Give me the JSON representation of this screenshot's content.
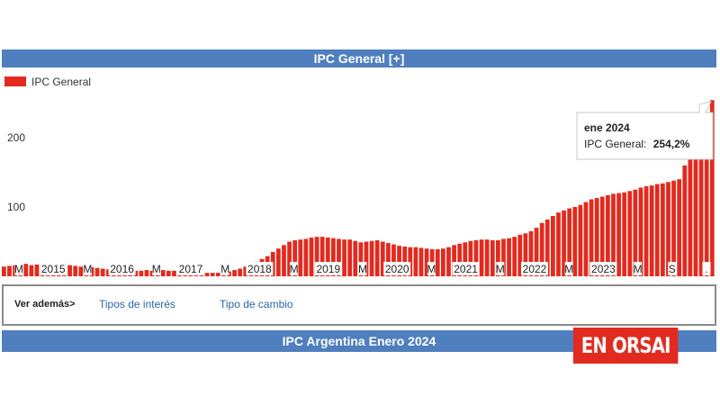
{
  "header": {
    "title": "IPC General [+]"
  },
  "chart_data": {
    "type": "bar",
    "series": [
      {
        "name": "IPC General",
        "color": "#e22a1e"
      }
    ],
    "yticks": [
      100,
      200
    ],
    "ylim": [
      0,
      260
    ],
    "xlabels": [
      "M",
      "2015",
      "M",
      "2016",
      "M",
      "2017",
      "M",
      "2018",
      "M",
      "2019",
      "M",
      "2020",
      "M",
      "2021",
      "M",
      "2022",
      "M",
      "2023",
      "M",
      "S",
      "."
    ],
    "values": [
      14,
      15,
      16,
      17,
      18,
      16,
      17,
      16,
      15,
      14,
      15,
      14,
      16,
      15,
      14,
      13,
      13,
      12,
      11,
      10,
      10,
      9,
      9,
      9,
      8,
      8,
      9,
      8,
      9,
      9,
      8,
      8,
      8,
      7,
      6,
      6,
      5,
      5,
      5,
      5,
      6,
      7,
      9,
      11,
      14,
      17,
      21,
      25,
      29,
      35,
      40,
      45,
      50,
      52,
      53,
      54,
      56,
      57,
      57,
      56,
      55,
      54,
      53,
      53,
      51,
      49,
      50,
      51,
      52,
      50,
      48,
      46,
      44,
      43,
      42,
      42,
      41,
      40,
      39,
      39,
      40,
      42,
      45,
      47,
      49,
      51,
      52,
      53,
      53,
      52,
      52,
      54,
      55,
      57,
      60,
      62,
      65,
      70,
      77,
      82,
      87,
      92,
      95,
      98,
      100,
      103,
      107,
      111,
      113,
      115,
      117,
      119,
      120,
      121,
      123,
      125,
      128,
      130,
      131,
      133,
      134,
      136,
      138,
      140,
      160,
      180,
      200,
      220,
      230,
      254.2
    ],
    "tooltip": {
      "date": "ene 2024",
      "label": "IPC General:",
      "value": "254,2%"
    }
  },
  "links": {
    "see_also": "Ver además>",
    "items": [
      "Tipos de interés",
      "Tipo de cambio"
    ]
  },
  "bottom_header": {
    "title": "IPC Argentina Enero 2024"
  },
  "logo": {
    "text": "EN ORSAI",
    "color": "#e22a1e"
  }
}
